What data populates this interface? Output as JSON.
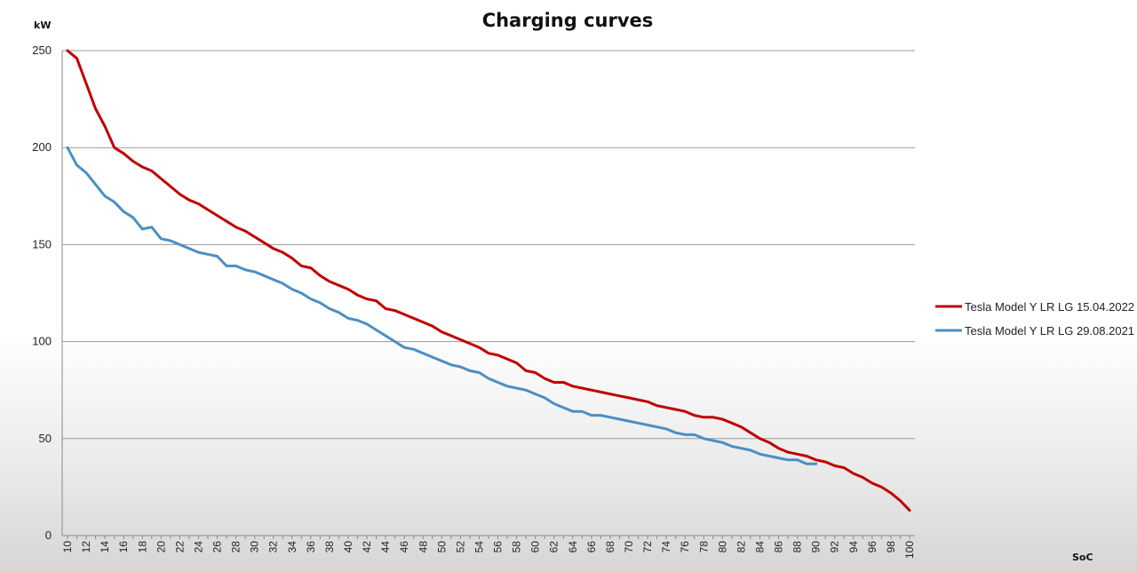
{
  "chart_data": {
    "type": "line",
    "title": "Charging curves",
    "ylabel": "kW",
    "xlabel": "SoC",
    "ylim": [
      0,
      250
    ],
    "yticks": [
      0,
      50,
      100,
      150,
      200,
      250
    ],
    "xlim": [
      10,
      100
    ],
    "xticks": [
      10,
      12,
      14,
      16,
      18,
      20,
      22,
      24,
      26,
      28,
      30,
      32,
      34,
      36,
      38,
      40,
      42,
      44,
      46,
      48,
      50,
      52,
      54,
      56,
      58,
      60,
      62,
      64,
      66,
      68,
      70,
      72,
      74,
      76,
      78,
      80,
      82,
      84,
      86,
      88,
      90,
      92,
      94,
      96,
      98,
      100
    ],
    "grid": "horizontal",
    "legend_position": "right",
    "series": [
      {
        "name": "Tesla Model Y LR LG 15.04.2022",
        "color": "#c00000",
        "x": [
          10,
          11,
          12,
          13,
          14,
          15,
          16,
          17,
          18,
          19,
          20,
          21,
          22,
          23,
          24,
          25,
          26,
          27,
          28,
          29,
          30,
          31,
          32,
          33,
          34,
          35,
          36,
          37,
          38,
          39,
          40,
          41,
          42,
          43,
          44,
          45,
          46,
          47,
          48,
          49,
          50,
          51,
          52,
          53,
          54,
          55,
          56,
          57,
          58,
          59,
          60,
          61,
          62,
          63,
          64,
          65,
          66,
          67,
          68,
          69,
          70,
          71,
          72,
          73,
          74,
          75,
          76,
          77,
          78,
          79,
          80,
          81,
          82,
          83,
          84,
          85,
          86,
          87,
          88,
          89,
          90,
          91,
          92,
          93,
          94,
          95,
          96,
          97,
          98,
          99,
          100
        ],
        "values": [
          250,
          246,
          233,
          220,
          211,
          200,
          197,
          193,
          190,
          188,
          184,
          180,
          176,
          173,
          171,
          168,
          165,
          162,
          159,
          157,
          154,
          151,
          148,
          146,
          143,
          139,
          138,
          134,
          131,
          129,
          127,
          124,
          122,
          121,
          117,
          116,
          114,
          112,
          110,
          108,
          105,
          103,
          101,
          99,
          97,
          94,
          93,
          91,
          89,
          85,
          84,
          81,
          79,
          79,
          77,
          76,
          75,
          74,
          73,
          72,
          71,
          70,
          69,
          67,
          66,
          65,
          64,
          62,
          61,
          61,
          60,
          58,
          56,
          53,
          50,
          48,
          45,
          43,
          42,
          41,
          39,
          38,
          36,
          35,
          32,
          30,
          27,
          25,
          22,
          18,
          13
        ]
      },
      {
        "name": "Tesla Model Y LR LG 29.08.2021",
        "color": "#4a8fc4",
        "x": [
          10,
          11,
          12,
          13,
          14,
          15,
          16,
          17,
          18,
          19,
          20,
          21,
          22,
          23,
          24,
          25,
          26,
          27,
          28,
          29,
          30,
          31,
          32,
          33,
          34,
          35,
          36,
          37,
          38,
          39,
          40,
          41,
          42,
          43,
          44,
          45,
          46,
          47,
          48,
          49,
          50,
          51,
          52,
          53,
          54,
          55,
          56,
          57,
          58,
          59,
          60,
          61,
          62,
          63,
          64,
          65,
          66,
          67,
          68,
          69,
          70,
          71,
          72,
          73,
          74,
          75,
          76,
          77,
          78,
          79,
          80,
          81,
          82,
          83,
          84,
          85,
          86,
          87,
          88,
          89,
          90
        ],
        "values": [
          200,
          191,
          187,
          181,
          175,
          172,
          167,
          164,
          158,
          159,
          153,
          152,
          150,
          148,
          146,
          145,
          144,
          139,
          139,
          137,
          136,
          134,
          132,
          130,
          127,
          125,
          122,
          120,
          117,
          115,
          112,
          111,
          109,
          106,
          103,
          100,
          97,
          96,
          94,
          92,
          90,
          88,
          87,
          85,
          84,
          81,
          79,
          77,
          76,
          75,
          73,
          71,
          68,
          66,
          64,
          64,
          62,
          62,
          61,
          60,
          59,
          58,
          57,
          56,
          55,
          53,
          52,
          52,
          50,
          49,
          48,
          46,
          45,
          44,
          42,
          41,
          40,
          39,
          39,
          37,
          37
        ]
      }
    ]
  }
}
